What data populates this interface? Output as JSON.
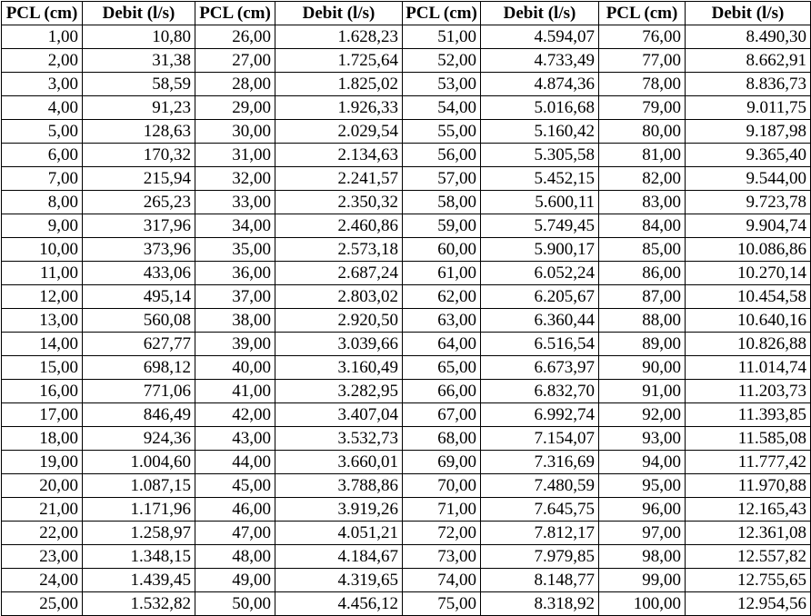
{
  "table": {
    "headers": [
      "PCL (cm)",
      "Debit (l/s)",
      "PCL (cm)",
      "Debit (l/s)",
      "PCL (cm)",
      "Debit (l/s)",
      "PCL (cm)",
      "Debit (l/s)"
    ],
    "rows": [
      [
        "1,00",
        "10,80",
        "26,00",
        "1.628,23",
        "51,00",
        "4.594,07",
        "76,00",
        "8.490,30"
      ],
      [
        "2,00",
        "31,38",
        "27,00",
        "1.725,64",
        "52,00",
        "4.733,49",
        "77,00",
        "8.662,91"
      ],
      [
        "3,00",
        "58,59",
        "28,00",
        "1.825,02",
        "53,00",
        "4.874,36",
        "78,00",
        "8.836,73"
      ],
      [
        "4,00",
        "91,23",
        "29,00",
        "1.926,33",
        "54,00",
        "5.016,68",
        "79,00",
        "9.011,75"
      ],
      [
        "5,00",
        "128,63",
        "30,00",
        "2.029,54",
        "55,00",
        "5.160,42",
        "80,00",
        "9.187,98"
      ],
      [
        "6,00",
        "170,32",
        "31,00",
        "2.134,63",
        "56,00",
        "5.305,58",
        "81,00",
        "9.365,40"
      ],
      [
        "7,00",
        "215,94",
        "32,00",
        "2.241,57",
        "57,00",
        "5.452,15",
        "82,00",
        "9.544,00"
      ],
      [
        "8,00",
        "265,23",
        "33,00",
        "2.350,32",
        "58,00",
        "5.600,11",
        "83,00",
        "9.723,78"
      ],
      [
        "9,00",
        "317,96",
        "34,00",
        "2.460,86",
        "59,00",
        "5.749,45",
        "84,00",
        "9.904,74"
      ],
      [
        "10,00",
        "373,96",
        "35,00",
        "2.573,18",
        "60,00",
        "5.900,17",
        "85,00",
        "10.086,86"
      ],
      [
        "11,00",
        "433,06",
        "36,00",
        "2.687,24",
        "61,00",
        "6.052,24",
        "86,00",
        "10.270,14"
      ],
      [
        "12,00",
        "495,14",
        "37,00",
        "2.803,02",
        "62,00",
        "6.205,67",
        "87,00",
        "10.454,58"
      ],
      [
        "13,00",
        "560,08",
        "38,00",
        "2.920,50",
        "63,00",
        "6.360,44",
        "88,00",
        "10.640,16"
      ],
      [
        "14,00",
        "627,77",
        "39,00",
        "3.039,66",
        "64,00",
        "6.516,54",
        "89,00",
        "10.826,88"
      ],
      [
        "15,00",
        "698,12",
        "40,00",
        "3.160,49",
        "65,00",
        "6.673,97",
        "90,00",
        "11.014,74"
      ],
      [
        "16,00",
        "771,06",
        "41,00",
        "3.282,95",
        "66,00",
        "6.832,70",
        "91,00",
        "11.203,73"
      ],
      [
        "17,00",
        "846,49",
        "42,00",
        "3.407,04",
        "67,00",
        "6.992,74",
        "92,00",
        "11.393,85"
      ],
      [
        "18,00",
        "924,36",
        "43,00",
        "3.532,73",
        "68,00",
        "7.154,07",
        "93,00",
        "11.585,08"
      ],
      [
        "19,00",
        "1.004,60",
        "44,00",
        "3.660,01",
        "69,00",
        "7.316,69",
        "94,00",
        "11.777,42"
      ],
      [
        "20,00",
        "1.087,15",
        "45,00",
        "3.788,86",
        "70,00",
        "7.480,59",
        "95,00",
        "11.970,88"
      ],
      [
        "21,00",
        "1.171,96",
        "46,00",
        "3.919,26",
        "71,00",
        "7.645,75",
        "96,00",
        "12.165,43"
      ],
      [
        "22,00",
        "1.258,97",
        "47,00",
        "4.051,21",
        "72,00",
        "7.812,17",
        "97,00",
        "12.361,08"
      ],
      [
        "23,00",
        "1.348,15",
        "48,00",
        "4.184,67",
        "73,00",
        "7.979,85",
        "98,00",
        "12.557,82"
      ],
      [
        "24,00",
        "1.439,45",
        "49,00",
        "4.319,65",
        "74,00",
        "8.148,77",
        "99,00",
        "12.755,65"
      ],
      [
        "25,00",
        "1.532,82",
        "50,00",
        "4.456,12",
        "75,00",
        "8.318,92",
        "100,00",
        "12.954,56"
      ]
    ]
  }
}
